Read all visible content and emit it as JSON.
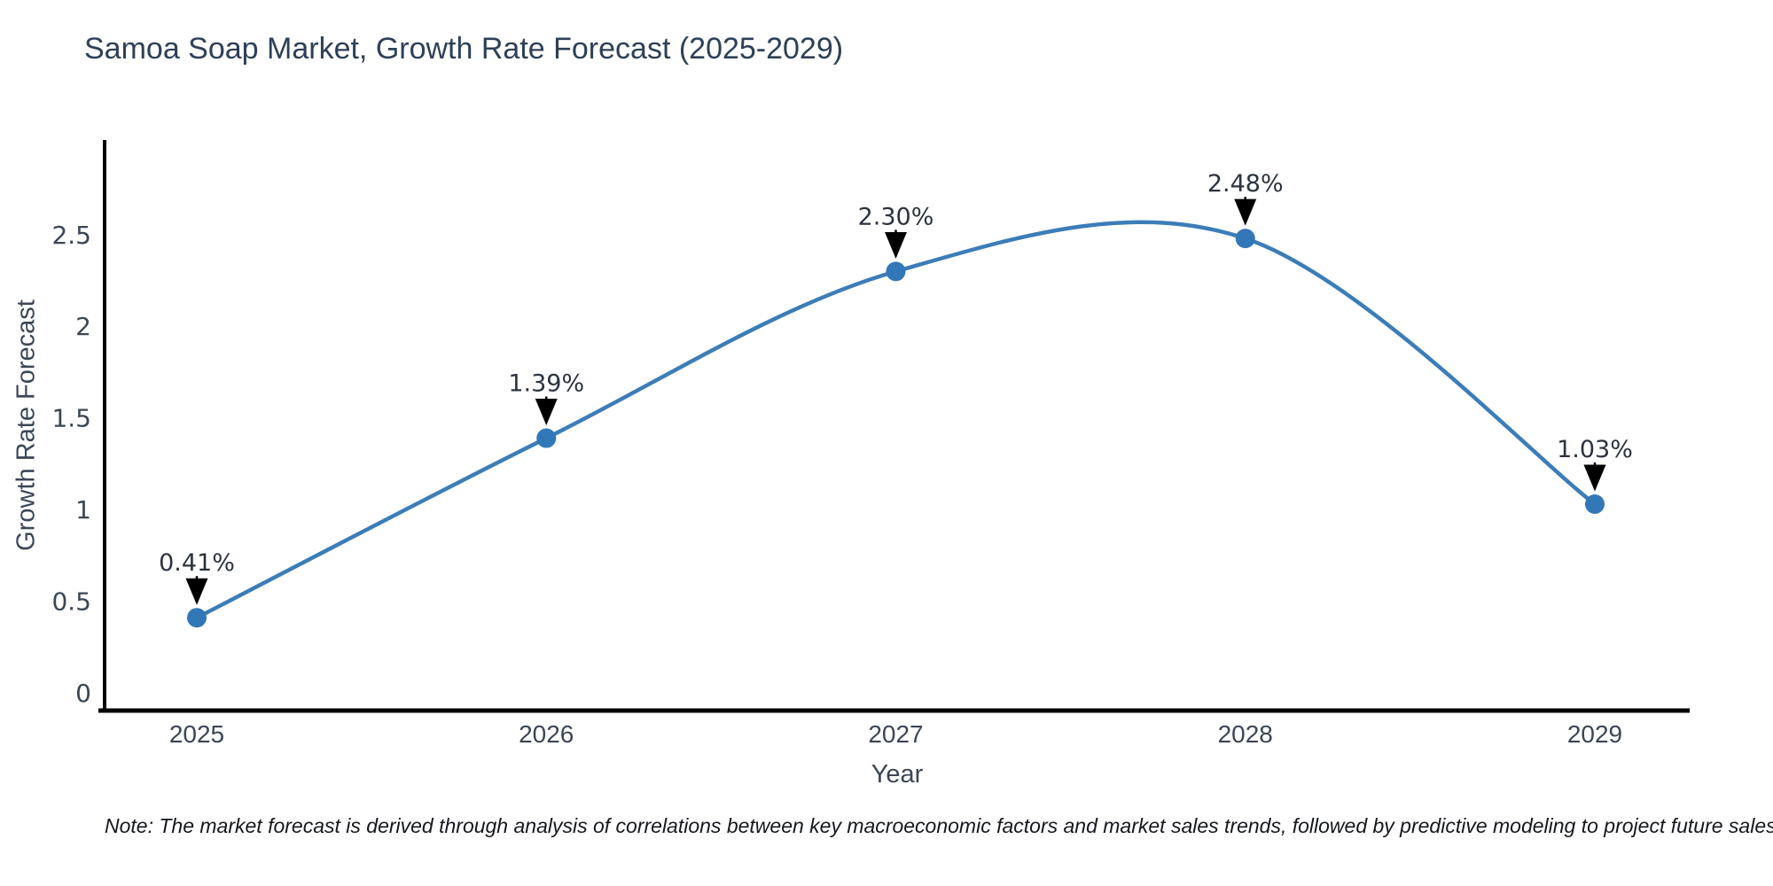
{
  "title": "Samoa Soap Market, Growth Rate Forecast (2025-2029)",
  "note": "Note: The market forecast is derived through analysis of correlations between key macroeconomic factors and market sales trends, followed by predictive modeling to project future sales",
  "chart_data": {
    "type": "line",
    "title": "Samoa Soap Market, Growth Rate Forecast (2025-2029)",
    "xlabel": "Year",
    "ylabel": "Growth Rate Forecast",
    "categories": [
      "2025",
      "2026",
      "2027",
      "2028",
      "2029"
    ],
    "x": [
      2025,
      2026,
      2027,
      2028,
      2029
    ],
    "series": [
      {
        "name": "Growth Rate Forecast",
        "values": [
          0.41,
          1.39,
          2.3,
          2.48,
          1.03
        ]
      }
    ],
    "point_labels": [
      "0.41%",
      "1.39%",
      "2.30%",
      "2.48%",
      "1.03%"
    ],
    "yticks": [
      0,
      0.5,
      1,
      1.5,
      2,
      2.5
    ],
    "ytick_labels": [
      "0",
      "0.5",
      "1",
      "1.5",
      "2",
      "2.5"
    ],
    "ylim": [
      -0.1,
      3.0
    ],
    "grid": false,
    "legend_position": "none",
    "curve": "smooth-spline",
    "colors": {
      "line": "#3c7db8",
      "marker": "#3277b8",
      "axis": "#000000",
      "tick_text": "#3b4656",
      "annotation_text": "#2b333f",
      "annotation_arrow": "#000000",
      "title_text": "#2e4057",
      "background": "#ffffff"
    }
  }
}
